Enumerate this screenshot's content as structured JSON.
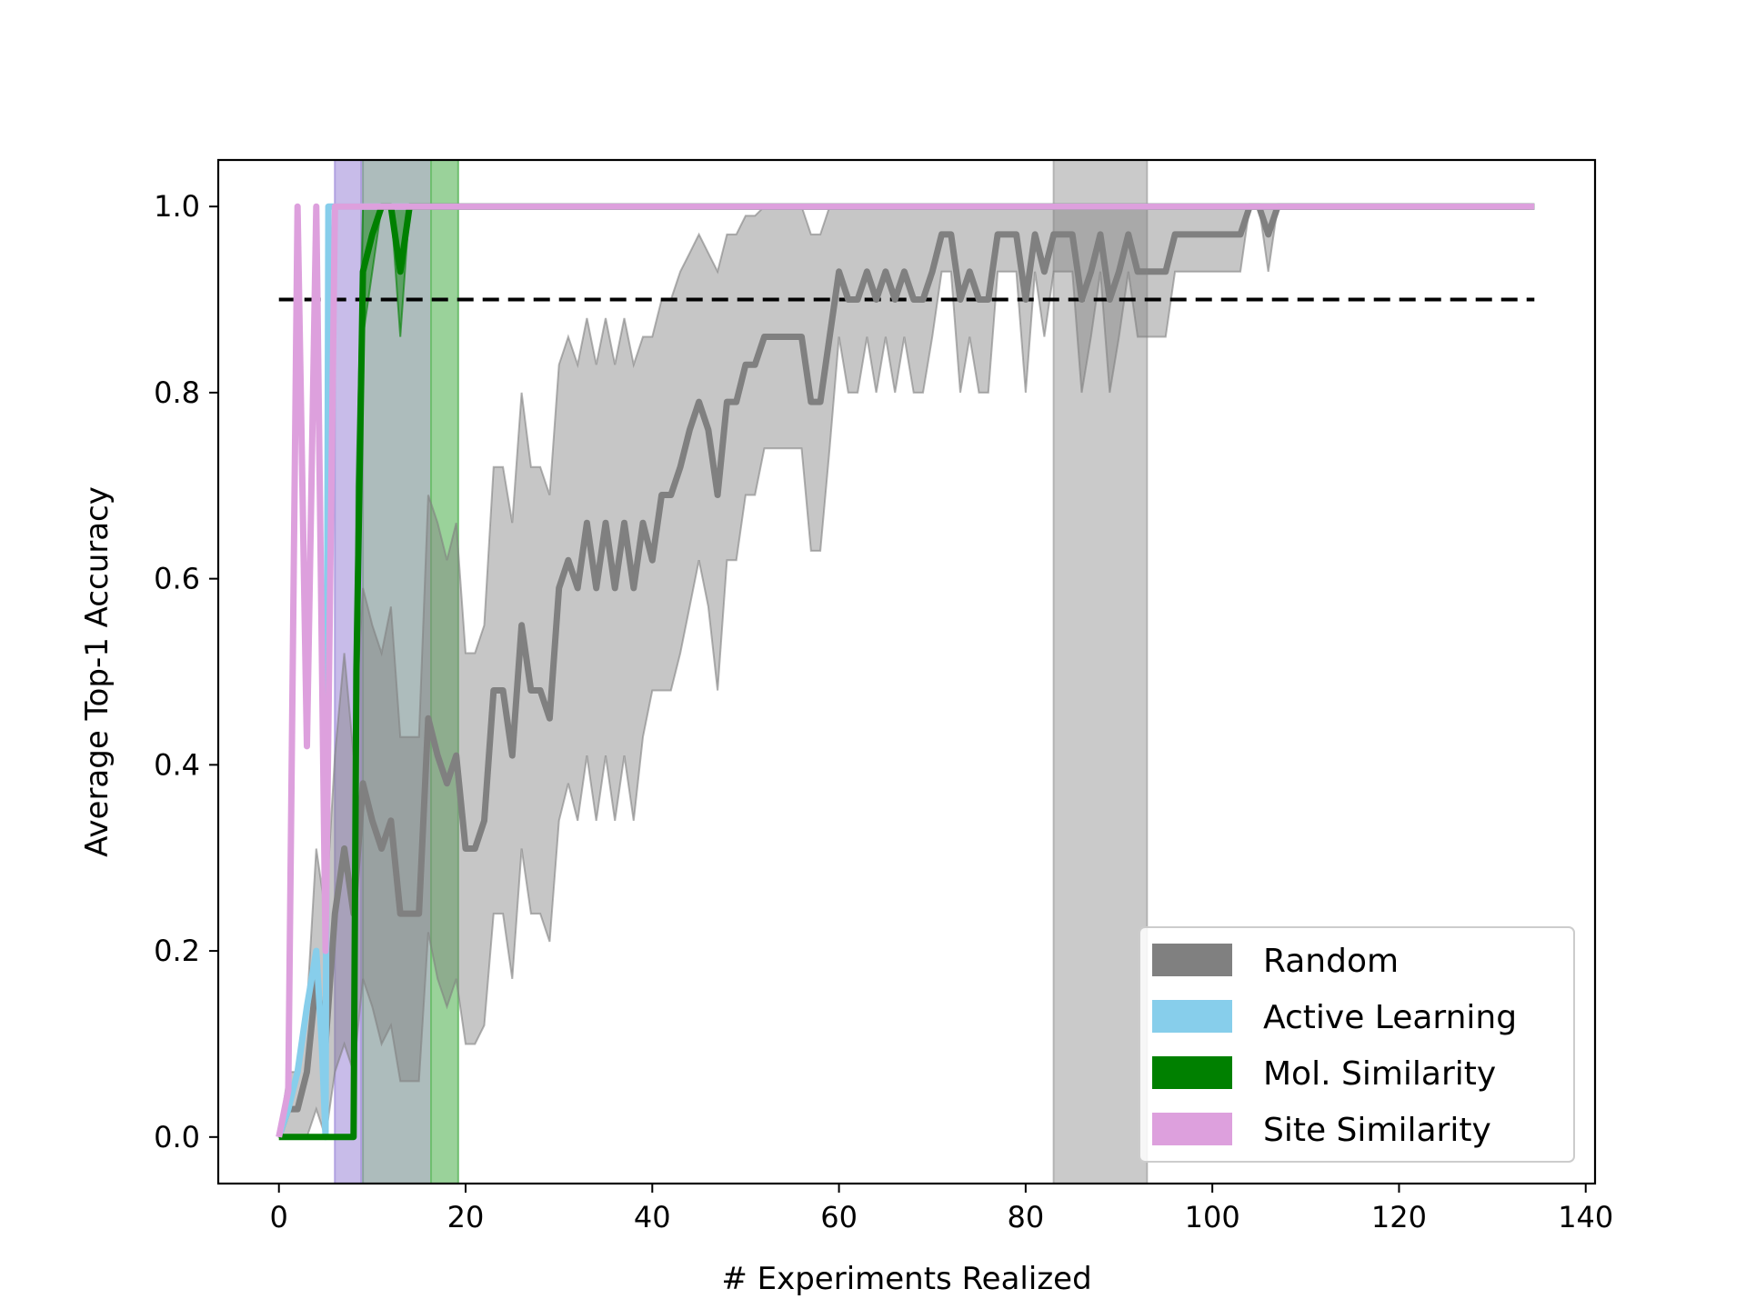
{
  "chart_data": {
    "type": "line",
    "title": "",
    "xlabel": "# Experiments Realized",
    "ylabel": "Average Top-1 Accuracy",
    "xlim": [
      -6.5,
      141
    ],
    "ylim": [
      -0.05,
      1.05
    ],
    "xticks": [
      0,
      20,
      40,
      60,
      80,
      100,
      120,
      140
    ],
    "yticks": [
      0.0,
      0.2,
      0.4,
      0.6,
      0.8,
      1.0
    ],
    "xtick_labels": [
      "0",
      "20",
      "40",
      "60",
      "80",
      "100",
      "120",
      "140"
    ],
    "ytick_labels": [
      "0.0",
      "0.2",
      "0.4",
      "0.6",
      "0.8",
      "1.0"
    ],
    "grid": false,
    "legend_position": "lower-right",
    "threshold": {
      "y": 0.9,
      "x_range": [
        0,
        134.5
      ],
      "style": "dashed",
      "color": "#000000"
    },
    "vertical_spans": [
      {
        "series": "Site Similarity",
        "x_range": [
          6,
          8.8
        ],
        "color": "#b0a0e0"
      },
      {
        "series": "Random",
        "x_range": [
          9,
          16.3
        ],
        "color": "#8aa0a0"
      },
      {
        "series": "Mol. Similarity",
        "x_range": [
          16.3,
          19.2
        ],
        "color": "#6fbf6f"
      },
      {
        "series": "Random",
        "x_range": [
          83,
          93
        ],
        "color": "#b4b4b4"
      }
    ],
    "series": [
      {
        "name": "Random",
        "color": "#808080",
        "x": [
          0,
          1,
          2,
          3,
          4,
          5,
          6,
          7,
          8,
          9,
          10,
          11,
          12,
          13,
          14,
          15,
          16,
          17,
          18,
          19,
          20,
          21,
          22,
          23,
          24,
          25,
          26,
          27,
          28,
          29,
          30,
          31,
          32,
          33,
          34,
          35,
          36,
          37,
          38,
          39,
          40,
          41,
          42,
          43,
          44,
          45,
          46,
          47,
          48,
          49,
          50,
          51,
          52,
          53,
          54,
          55,
          56,
          57,
          58,
          59,
          60,
          61,
          62,
          63,
          64,
          65,
          66,
          67,
          68,
          69,
          70,
          71,
          72,
          73,
          74,
          75,
          76,
          77,
          78,
          79,
          80,
          81,
          82,
          83,
          84,
          85,
          86,
          87,
          88,
          89,
          90,
          91,
          92,
          93,
          94,
          95,
          96,
          97,
          98,
          99,
          100,
          101,
          102,
          103,
          104,
          105,
          106,
          107,
          108,
          109,
          110,
          111,
          112,
          113,
          114,
          115,
          116,
          117,
          118,
          119,
          120,
          121,
          122,
          123,
          124,
          125,
          126,
          127,
          128,
          129,
          130,
          131,
          132,
          133,
          134
        ],
        "y": [
          0,
          0.03,
          0.03,
          0.07,
          0.17,
          0.1,
          0.24,
          0.31,
          0.24,
          0.38,
          0.34,
          0.31,
          0.34,
          0.24,
          0.24,
          0.24,
          0.45,
          0.41,
          0.38,
          0.41,
          0.31,
          0.31,
          0.34,
          0.48,
          0.48,
          0.41,
          0.55,
          0.48,
          0.48,
          0.45,
          0.59,
          0.62,
          0.59,
          0.66,
          0.59,
          0.66,
          0.59,
          0.66,
          0.59,
          0.66,
          0.62,
          0.69,
          0.69,
          0.72,
          0.76,
          0.79,
          0.76,
          0.69,
          0.79,
          0.79,
          0.83,
          0.83,
          0.86,
          0.86,
          0.86,
          0.86,
          0.86,
          0.79,
          0.79,
          0.86,
          0.93,
          0.9,
          0.9,
          0.93,
          0.9,
          0.93,
          0.9,
          0.93,
          0.9,
          0.9,
          0.93,
          0.97,
          0.97,
          0.9,
          0.93,
          0.9,
          0.9,
          0.97,
          0.97,
          0.97,
          0.9,
          0.97,
          0.93,
          0.97,
          0.97,
          0.97,
          0.9,
          0.93,
          0.97,
          0.9,
          0.93,
          0.97,
          0.93,
          0.93,
          0.93,
          0.93,
          0.97,
          0.97,
          0.97,
          0.97,
          0.97,
          0.97,
          0.97,
          0.97,
          1.0,
          1.0,
          0.97,
          1.0,
          1.0,
          1.0,
          1.0,
          1.0,
          1.0,
          1.0,
          1.0,
          1.0,
          1.0,
          1.0,
          1.0,
          1.0,
          1.0,
          1.0,
          1.0,
          1.0,
          1.0,
          1.0,
          1.0,
          1.0,
          1.0,
          1.0,
          1.0,
          1.0,
          1.0,
          1.0,
          1.0
        ],
        "band_upper": [
          0,
          0.07,
          0.07,
          0.14,
          0.31,
          0.24,
          0.41,
          0.52,
          0.41,
          0.59,
          0.55,
          0.52,
          0.57,
          0.43,
          0.43,
          0.43,
          0.69,
          0.66,
          0.62,
          0.66,
          0.52,
          0.52,
          0.55,
          0.72,
          0.72,
          0.66,
          0.8,
          0.72,
          0.72,
          0.69,
          0.83,
          0.86,
          0.83,
          0.88,
          0.83,
          0.88,
          0.83,
          0.88,
          0.83,
          0.86,
          0.86,
          0.9,
          0.9,
          0.93,
          0.95,
          0.97,
          0.95,
          0.93,
          0.97,
          0.97,
          0.99,
          0.99,
          1.0,
          1.0,
          1.0,
          1.0,
          1.0,
          0.97,
          0.97,
          1.0,
          1.0,
          1.0,
          1.0,
          1.0,
          1.0,
          1.0,
          1.0,
          1.0,
          1.0,
          1.0,
          1.0,
          1.0,
          1.0,
          1.0,
          1.0,
          1.0,
          1.0,
          1.0,
          1.0,
          1.0,
          1.0,
          1.0,
          1.0,
          1.0,
          1.0,
          1.0,
          1.0,
          1.0,
          1.0,
          1.0,
          1.0,
          1.0,
          1.0,
          1.0,
          1.0,
          1.0,
          1.0,
          1.0,
          1.0,
          1.0,
          1.0,
          1.0,
          1.0,
          1.0,
          1.0,
          1.0,
          1.0,
          1.0,
          1.0,
          1.0,
          1.0,
          1.0,
          1.0,
          1.0,
          1.0,
          1.0,
          1.0,
          1.0,
          1.0,
          1.0,
          1.0,
          1.0,
          1.0,
          1.0,
          1.0,
          1.0,
          1.0,
          1.0,
          1.0,
          1.0,
          1.0,
          1.0,
          1.0,
          1.0,
          1.0
        ],
        "band_lower": [
          0,
          0,
          0,
          0,
          0.03,
          0,
          0.07,
          0.1,
          0.07,
          0.17,
          0.14,
          0.1,
          0.12,
          0.06,
          0.06,
          0.06,
          0.22,
          0.17,
          0.14,
          0.17,
          0.1,
          0.1,
          0.12,
          0.24,
          0.24,
          0.17,
          0.31,
          0.24,
          0.24,
          0.21,
          0.34,
          0.38,
          0.34,
          0.41,
          0.34,
          0.41,
          0.34,
          0.41,
          0.34,
          0.43,
          0.48,
          0.48,
          0.48,
          0.52,
          0.57,
          0.62,
          0.57,
          0.48,
          0.62,
          0.62,
          0.69,
          0.69,
          0.74,
          0.74,
          0.74,
          0.74,
          0.74,
          0.63,
          0.63,
          0.74,
          0.86,
          0.8,
          0.8,
          0.86,
          0.8,
          0.86,
          0.8,
          0.86,
          0.8,
          0.8,
          0.86,
          0.93,
          0.93,
          0.8,
          0.86,
          0.8,
          0.8,
          0.93,
          0.93,
          0.93,
          0.8,
          0.93,
          0.86,
          0.93,
          0.93,
          0.93,
          0.8,
          0.86,
          0.93,
          0.8,
          0.86,
          0.93,
          0.86,
          0.86,
          0.86,
          0.86,
          0.93,
          0.93,
          0.93,
          0.93,
          0.93,
          0.93,
          0.93,
          0.93,
          1.0,
          1.0,
          0.93,
          1.0,
          1.0,
          1.0,
          1.0,
          1.0,
          1.0,
          1.0,
          1.0,
          1.0,
          1.0,
          1.0,
          1.0,
          1.0,
          1.0,
          1.0,
          1.0,
          1.0,
          1.0,
          1.0,
          1.0,
          1.0,
          1.0,
          1.0,
          1.0,
          1.0,
          1.0,
          1.0,
          1.0
        ]
      },
      {
        "name": "Active Learning",
        "color": "#87ceeb",
        "x": [
          0,
          1,
          2,
          3,
          4,
          4.6,
          5,
          5.3,
          6,
          7,
          8,
          134.5
        ],
        "y": [
          0,
          0.03,
          0.07,
          0.14,
          0.2,
          0.1,
          0,
          1.0,
          1.0,
          1.0,
          1.0,
          1.0
        ]
      },
      {
        "name": "Mol. Similarity",
        "color": "#008000",
        "x": [
          0,
          1,
          2,
          3,
          4,
          5,
          6,
          7,
          8,
          8.3,
          9,
          10,
          11,
          12,
          13,
          14,
          15,
          134.5
        ],
        "y": [
          0,
          0,
          0,
          0,
          0,
          0,
          0,
          0,
          0,
          0.5,
          0.93,
          0.97,
          1.0,
          1.0,
          0.93,
          1.0,
          1.0,
          1.0
        ],
        "band_upper": [
          0,
          0,
          0,
          0,
          0,
          0,
          0,
          0,
          0,
          0.7,
          1.0,
          1.0,
          1.0,
          1.0,
          1.0,
          1.0,
          1.0,
          1.0
        ],
        "band_lower": [
          0,
          0,
          0,
          0,
          0,
          0,
          0,
          0,
          0,
          0.3,
          0.86,
          0.93,
          1.0,
          1.0,
          0.86,
          1.0,
          1.0,
          1.0
        ]
      },
      {
        "name": "Site Similarity",
        "color": "#dda0dd",
        "x": [
          0,
          1,
          2,
          3,
          4,
          5,
          6,
          7,
          8,
          9,
          134.5
        ],
        "y": [
          0,
          0.05,
          1.0,
          0.42,
          1.0,
          0.2,
          1.0,
          1.0,
          1.0,
          1.0,
          1.0
        ]
      }
    ]
  }
}
